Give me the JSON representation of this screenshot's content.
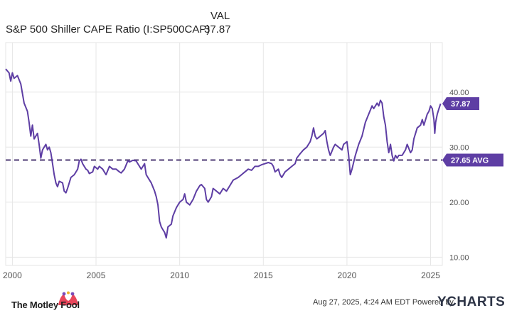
{
  "legend": {
    "column_header": "VAL",
    "series_name": "S&P 500 Shiller CAPE Ratio (I:SP500CAP)",
    "series_value": "37.87"
  },
  "footer": {
    "brand": "The Motley Fool",
    "timestamp": "Aug 27, 2025, 4:24 AM EDT Powered by",
    "powered_by": "YCHARTS"
  },
  "colors": {
    "series": "#5e3ea4",
    "average": "#4c3a73",
    "grid": "#e6e6e6",
    "axis_text": "#555555",
    "fool_cap": "#e8465b"
  },
  "chart_data": {
    "type": "line",
    "title": "",
    "xlabel": "",
    "ylabel": "",
    "xlim": [
      1999.6,
      2025.7
    ],
    "ylim": [
      8.5,
      49
    ],
    "x_ticks": [
      "2000",
      "2005",
      "2010",
      "2015",
      "2020",
      "2025"
    ],
    "y_ticks": [
      "10.00",
      "20.00",
      "30.00",
      "40.00"
    ],
    "grid": true,
    "series": [
      {
        "name": "S&P 500 Shiller CAPE Ratio (I:SP500CAP)",
        "end_label": "37.87",
        "points": [
          [
            1999.6,
            44.2
          ],
          [
            1999.8,
            43.5
          ],
          [
            1999.9,
            42.0
          ],
          [
            2000.0,
            43.5
          ],
          [
            2000.1,
            42.5
          ],
          [
            2000.3,
            43.0
          ],
          [
            2000.5,
            41.5
          ],
          [
            2000.7,
            38.0
          ],
          [
            2000.9,
            36.5
          ],
          [
            2001.0,
            34.5
          ],
          [
            2001.1,
            32.0
          ],
          [
            2001.2,
            34.0
          ],
          [
            2001.3,
            31.5
          ],
          [
            2001.5,
            32.5
          ],
          [
            2001.6,
            30.5
          ],
          [
            2001.7,
            28.0
          ],
          [
            2001.8,
            29.5
          ],
          [
            2002.0,
            30.5
          ],
          [
            2002.1,
            29.5
          ],
          [
            2002.2,
            30.0
          ],
          [
            2002.3,
            29.0
          ],
          [
            2002.4,
            27.0
          ],
          [
            2002.5,
            25.0
          ],
          [
            2002.6,
            23.5
          ],
          [
            2002.7,
            22.8
          ],
          [
            2002.8,
            23.8
          ],
          [
            2003.0,
            23.5
          ],
          [
            2003.1,
            22.0
          ],
          [
            2003.2,
            21.7
          ],
          [
            2003.3,
            22.5
          ],
          [
            2003.5,
            24.5
          ],
          [
            2003.7,
            25.0
          ],
          [
            2003.9,
            26.0
          ],
          [
            2004.0,
            27.5
          ],
          [
            2004.1,
            27.8
          ],
          [
            2004.2,
            27.0
          ],
          [
            2004.4,
            26.0
          ],
          [
            2004.5,
            25.8
          ],
          [
            2004.6,
            25.2
          ],
          [
            2004.8,
            25.5
          ],
          [
            2004.9,
            26.5
          ],
          [
            2005.1,
            26.0
          ],
          [
            2005.2,
            26.5
          ],
          [
            2005.4,
            26.0
          ],
          [
            2005.6,
            25.0
          ],
          [
            2005.8,
            26.5
          ],
          [
            2006.0,
            26.0
          ],
          [
            2006.2,
            26.0
          ],
          [
            2006.4,
            25.5
          ],
          [
            2006.5,
            25.3
          ],
          [
            2006.7,
            26.0
          ],
          [
            2006.9,
            27.5
          ],
          [
            2007.0,
            27.3
          ],
          [
            2007.2,
            27.6
          ],
          [
            2007.4,
            27.5
          ],
          [
            2007.5,
            27.0
          ],
          [
            2007.7,
            26.0
          ],
          [
            2007.9,
            27.0
          ],
          [
            2008.0,
            25.0
          ],
          [
            2008.2,
            24.0
          ],
          [
            2008.3,
            23.5
          ],
          [
            2008.5,
            22.0
          ],
          [
            2008.6,
            21.0
          ],
          [
            2008.7,
            19.5
          ],
          [
            2008.8,
            16.5
          ],
          [
            2008.9,
            15.5
          ],
          [
            2009.0,
            15.0
          ],
          [
            2009.1,
            14.5
          ],
          [
            2009.2,
            13.5
          ],
          [
            2009.3,
            15.5
          ],
          [
            2009.5,
            16.0
          ],
          [
            2009.6,
            17.5
          ],
          [
            2009.8,
            19.0
          ],
          [
            2010.0,
            20.0
          ],
          [
            2010.2,
            20.5
          ],
          [
            2010.3,
            21.5
          ],
          [
            2010.4,
            20.0
          ],
          [
            2010.6,
            19.5
          ],
          [
            2010.8,
            20.5
          ],
          [
            2011.0,
            22.0
          ],
          [
            2011.2,
            23.0
          ],
          [
            2011.3,
            23.2
          ],
          [
            2011.5,
            22.5
          ],
          [
            2011.6,
            20.5
          ],
          [
            2011.7,
            20.0
          ],
          [
            2011.9,
            21.0
          ],
          [
            2012.0,
            22.5
          ],
          [
            2012.2,
            22.0
          ],
          [
            2012.4,
            21.5
          ],
          [
            2012.6,
            22.5
          ],
          [
            2012.8,
            22.0
          ],
          [
            2013.0,
            23.0
          ],
          [
            2013.2,
            24.0
          ],
          [
            2013.5,
            24.5
          ],
          [
            2013.7,
            25.0
          ],
          [
            2013.9,
            25.5
          ],
          [
            2014.1,
            26.0
          ],
          [
            2014.3,
            25.8
          ],
          [
            2014.5,
            26.5
          ],
          [
            2014.7,
            26.5
          ],
          [
            2014.9,
            26.8
          ],
          [
            2015.1,
            27.0
          ],
          [
            2015.3,
            27.2
          ],
          [
            2015.5,
            27.0
          ],
          [
            2015.6,
            26.5
          ],
          [
            2015.7,
            25.5
          ],
          [
            2015.9,
            26.0
          ],
          [
            2016.0,
            25.0
          ],
          [
            2016.1,
            24.5
          ],
          [
            2016.3,
            25.5
          ],
          [
            2016.5,
            26.0
          ],
          [
            2016.7,
            26.5
          ],
          [
            2016.9,
            27.0
          ],
          [
            2017.0,
            28.0
          ],
          [
            2017.2,
            28.8
          ],
          [
            2017.4,
            29.5
          ],
          [
            2017.6,
            30.0
          ],
          [
            2017.8,
            31.0
          ],
          [
            2017.9,
            32.0
          ],
          [
            2018.0,
            33.5
          ],
          [
            2018.1,
            32.0
          ],
          [
            2018.2,
            31.5
          ],
          [
            2018.4,
            32.0
          ],
          [
            2018.6,
            32.5
          ],
          [
            2018.7,
            33.0
          ],
          [
            2018.8,
            31.0
          ],
          [
            2018.9,
            29.5
          ],
          [
            2019.0,
            28.5
          ],
          [
            2019.2,
            30.0
          ],
          [
            2019.3,
            30.5
          ],
          [
            2019.5,
            30.0
          ],
          [
            2019.7,
            29.5
          ],
          [
            2019.8,
            30.5
          ],
          [
            2020.0,
            31.0
          ],
          [
            2020.1,
            28.5
          ],
          [
            2020.2,
            25.0
          ],
          [
            2020.3,
            26.0
          ],
          [
            2020.5,
            28.5
          ],
          [
            2020.7,
            30.5
          ],
          [
            2020.9,
            32.0
          ],
          [
            2021.1,
            34.5
          ],
          [
            2021.3,
            36.0
          ],
          [
            2021.5,
            37.5
          ],
          [
            2021.6,
            37.0
          ],
          [
            2021.7,
            37.5
          ],
          [
            2021.8,
            38.0
          ],
          [
            2021.9,
            37.5
          ],
          [
            2022.0,
            38.5
          ],
          [
            2022.1,
            38.0
          ],
          [
            2022.2,
            35.5
          ],
          [
            2022.3,
            34.0
          ],
          [
            2022.4,
            31.0
          ],
          [
            2022.5,
            29.0
          ],
          [
            2022.6,
            30.5
          ],
          [
            2022.7,
            28.5
          ],
          [
            2022.8,
            27.5
          ],
          [
            2022.9,
            28.5
          ],
          [
            2023.0,
            28.0
          ],
          [
            2023.1,
            28.5
          ],
          [
            2023.3,
            28.5
          ],
          [
            2023.5,
            29.5
          ],
          [
            2023.6,
            30.5
          ],
          [
            2023.8,
            29.0
          ],
          [
            2023.9,
            29.5
          ],
          [
            2024.0,
            31.5
          ],
          [
            2024.2,
            33.5
          ],
          [
            2024.4,
            34.0
          ],
          [
            2024.5,
            35.0
          ],
          [
            2024.6,
            34.0
          ],
          [
            2024.8,
            36.0
          ],
          [
            2024.9,
            36.5
          ],
          [
            2025.0,
            37.5
          ],
          [
            2025.1,
            37.0
          ],
          [
            2025.2,
            35.0
          ],
          [
            2025.25,
            32.5
          ],
          [
            2025.3,
            34.5
          ],
          [
            2025.4,
            36.0
          ],
          [
            2025.5,
            37.0
          ],
          [
            2025.6,
            37.9
          ]
        ]
      }
    ],
    "average": {
      "value": 27.65,
      "label": "27.65 AVG"
    }
  }
}
